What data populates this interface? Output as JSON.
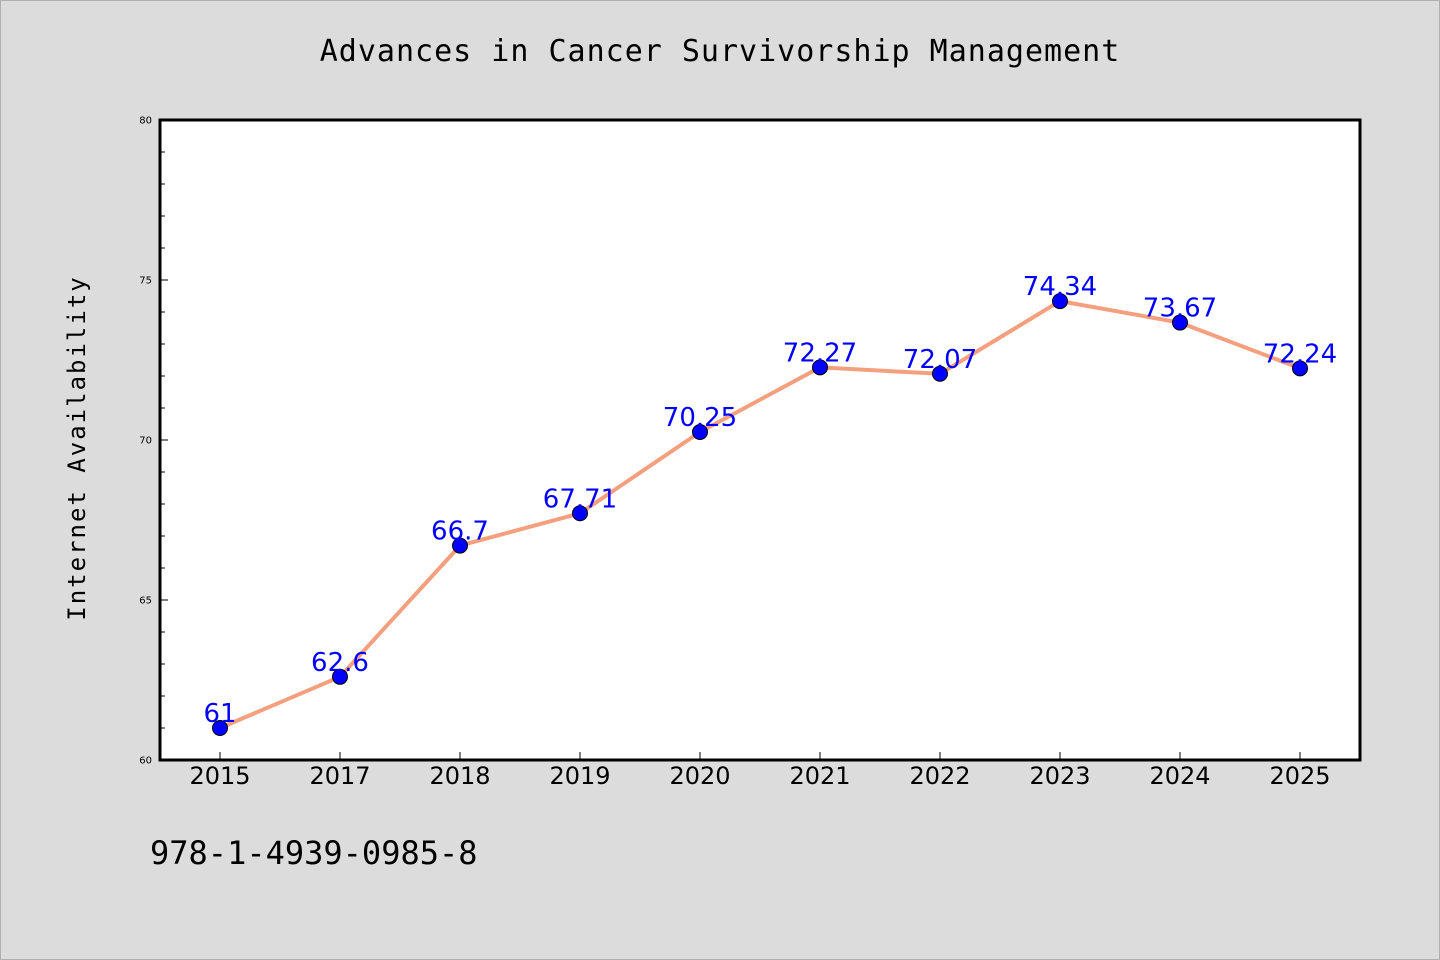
{
  "chart_data": {
    "type": "line",
    "title": "Advances in Cancer Survivorship Management",
    "xlabel": "",
    "ylabel": "Internet Availability",
    "categories": [
      "2015",
      "2017",
      "2018",
      "2019",
      "2020",
      "2021",
      "2022",
      "2023",
      "2024",
      "2025"
    ],
    "values": [
      61,
      62.6,
      66.7,
      67.71,
      70.25,
      72.27,
      72.07,
      74.34,
      73.67,
      72.24
    ],
    "data_labels": [
      "61",
      "62.6",
      "66.7",
      "67.71",
      "70.25",
      "72.27",
      "72.07",
      "74.34",
      "73.67",
      "72.24"
    ],
    "ylim": [
      60,
      80
    ],
    "yticks": [
      "60",
      "65",
      "70",
      "75",
      "80"
    ],
    "grid": false,
    "legend": "none",
    "line_color": "#f4a07e",
    "marker_color": "#0000ff",
    "label_color": "#0000ff",
    "plot_background": "#ffffff",
    "page_background": "#dcdcdc"
  },
  "footer": {
    "code": "978-1-4939-0985-8"
  }
}
